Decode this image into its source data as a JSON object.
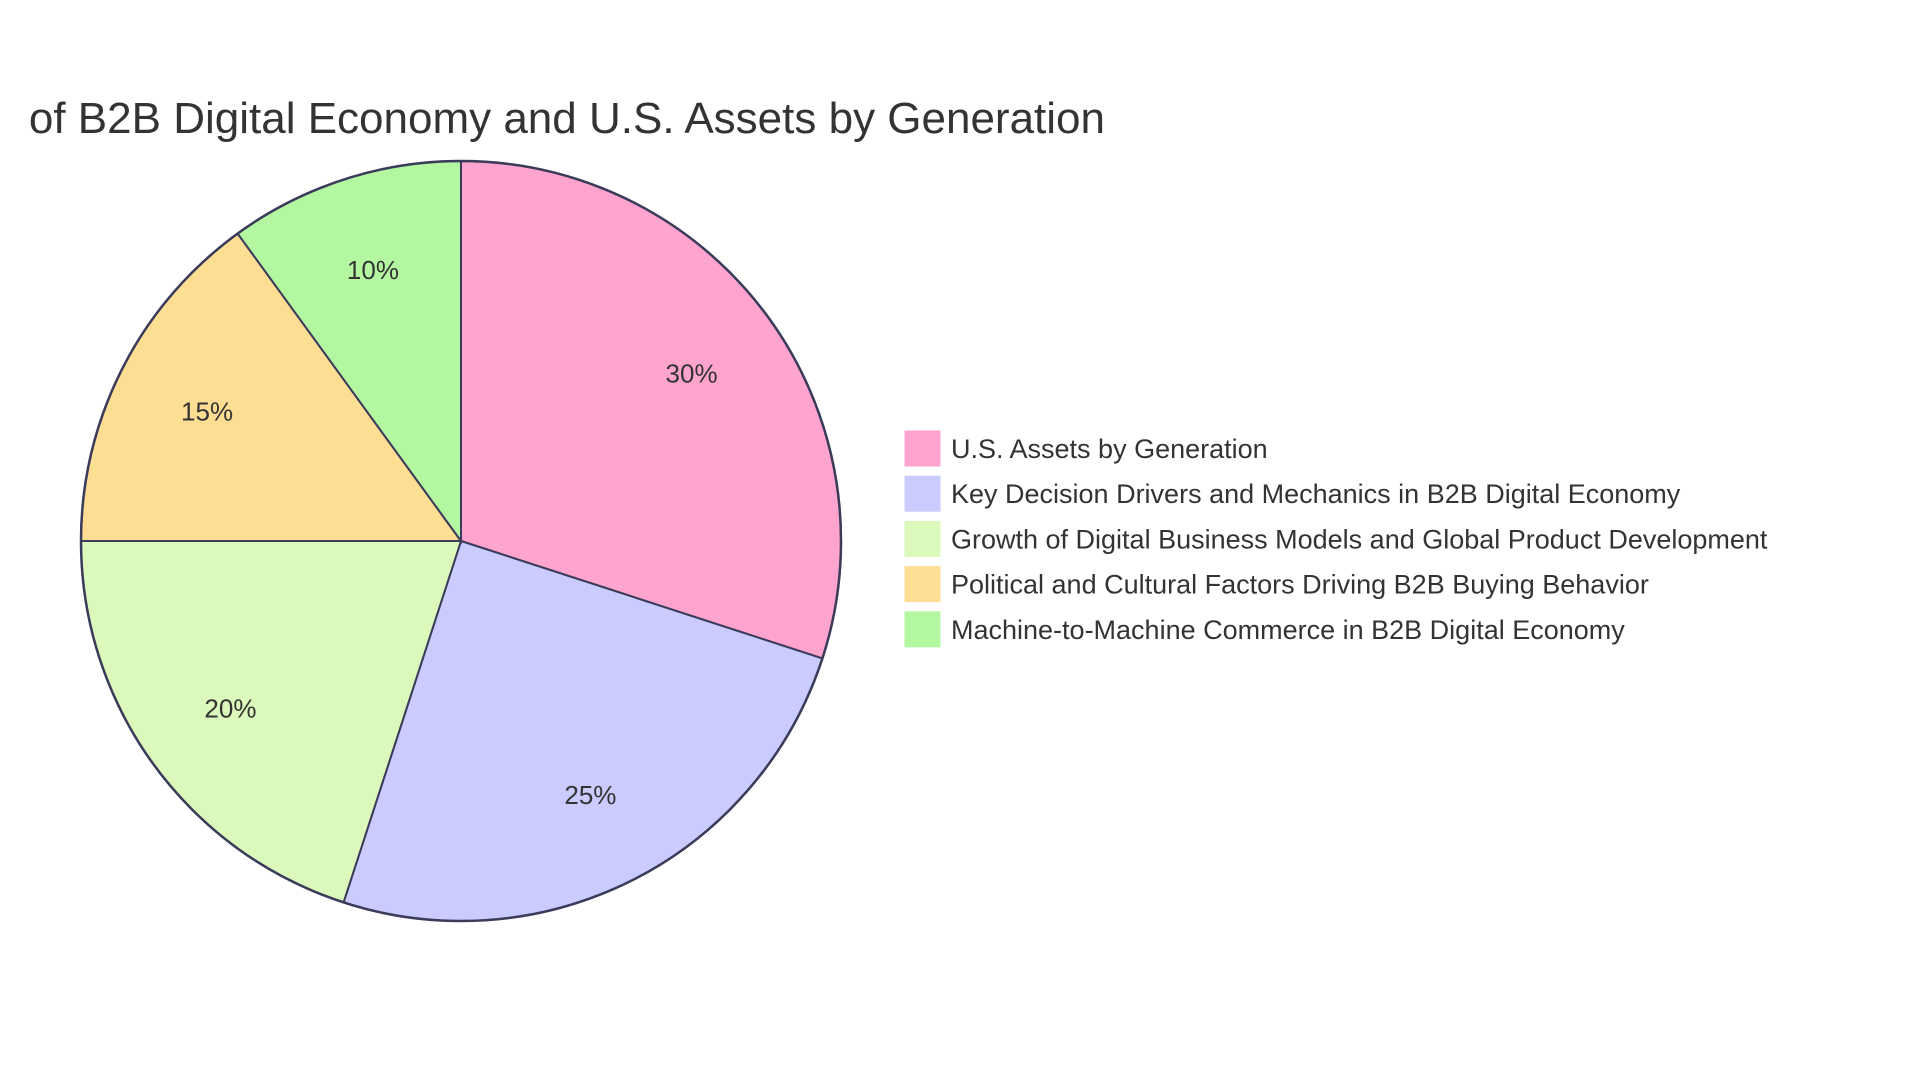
{
  "chart_data": {
    "type": "pie",
    "title": "of B2B Digital Economy and U.S. Assets by Generation",
    "categories": [
      "U.S. Assets by Generation",
      "Key Decision Drivers and Mechanics in B2B Digital Economy",
      "Growth of Digital Business Models and Global Product Development",
      "Political and Cultural Factors Driving B2B Buying Behavior",
      "Machine-to-Machine Commerce in B2B Digital Economy"
    ],
    "values": [
      30,
      25,
      20,
      15,
      10
    ],
    "labels": [
      "30%",
      "25%",
      "20%",
      "15%",
      "10%"
    ],
    "colors": [
      "#FFA3CF",
      "#CACBFF",
      "#DCF9BC",
      "#FEDE93",
      "#B3F8A1"
    ],
    "stroke_color": "#3B3B5A",
    "legend_position": "right"
  }
}
